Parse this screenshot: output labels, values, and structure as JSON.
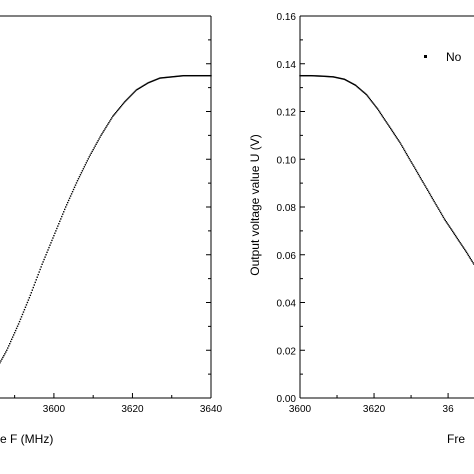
{
  "chart_data": [
    {
      "type": "scatter",
      "title": "",
      "xlabel": "e F (MHz)",
      "ylabel": "",
      "xlim": [
        3585,
        3640
      ],
      "ylim": [
        0.0,
        0.16
      ],
      "x_ticks": [
        "3600",
        "3620",
        "3640"
      ],
      "grid": false,
      "series": [
        {
          "x": [
            3585,
            3588,
            3591,
            3594,
            3597,
            3600,
            3603,
            3606,
            3609,
            3612,
            3615,
            3618,
            3621,
            3624,
            3627,
            3630,
            3633,
            3636,
            3640
          ],
          "y": [
            0.011,
            0.02,
            0.031,
            0.043,
            0.056,
            0.068,
            0.08,
            0.091,
            0.101,
            0.11,
            0.118,
            0.124,
            0.129,
            0.132,
            0.134,
            0.1345,
            0.135,
            0.135,
            0.135
          ]
        }
      ]
    },
    {
      "type": "scatter",
      "title": "",
      "xlabel": "Fre",
      "ylabel": "Output voltage value U (V)",
      "xlim": [
        3600,
        3647
      ],
      "ylim": [
        0.0,
        0.16
      ],
      "x_ticks": [
        "3600",
        "3620",
        "36"
      ],
      "y_ticks": [
        "0.00",
        "0.02",
        "0.04",
        "0.06",
        "0.08",
        "0.10",
        "0.12",
        "0.14",
        "0.16"
      ],
      "grid": false,
      "legend": {
        "label": "No",
        "position": "top-right"
      },
      "series": [
        {
          "name": "No",
          "x": [
            3600,
            3603,
            3606,
            3609,
            3612,
            3615,
            3618,
            3621,
            3624,
            3627,
            3630,
            3633,
            3636,
            3639,
            3642,
            3645,
            3647
          ],
          "y": [
            0.135,
            0.135,
            0.1348,
            0.1345,
            0.1335,
            0.131,
            0.127,
            0.121,
            0.114,
            0.107,
            0.099,
            0.091,
            0.083,
            0.075,
            0.068,
            0.061,
            0.056
          ]
        }
      ]
    }
  ]
}
